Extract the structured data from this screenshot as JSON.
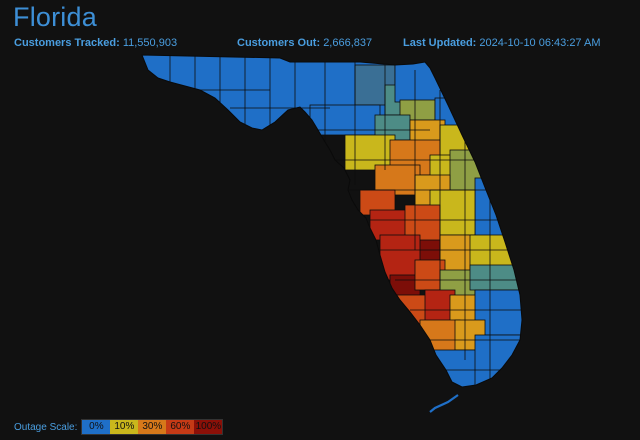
{
  "header": {
    "title": "Florida"
  },
  "stats": {
    "tracked_label": "Customers Tracked:",
    "tracked_value": "11,550,903",
    "out_label": "Customers Out:",
    "out_value": "2,666,837",
    "updated_label": "Last Updated:",
    "updated_value": "2024-10-10 06:43:27 AM"
  },
  "legend": {
    "title": "Outage Scale:",
    "items": [
      {
        "label": "0%",
        "color": "#1f6fc7"
      },
      {
        "label": "10%",
        "color": "#c9b71c"
      },
      {
        "label": "30%",
        "color": "#d6781a"
      },
      {
        "label": "60%",
        "color": "#c53a16"
      },
      {
        "label": "100%",
        "color": "#8b1008"
      }
    ]
  },
  "colors": {
    "blue": "#1f6fc7",
    "steel": "#3a6f95",
    "teal": "#4d8c86",
    "olive": "#8f9f44",
    "yellow": "#c9b71c",
    "amber": "#d99a1c",
    "orange": "#d6781a",
    "redorange": "#cc4a16",
    "red": "#b42413",
    "darkred": "#7c0e08",
    "border": "#0d0d0d"
  }
}
